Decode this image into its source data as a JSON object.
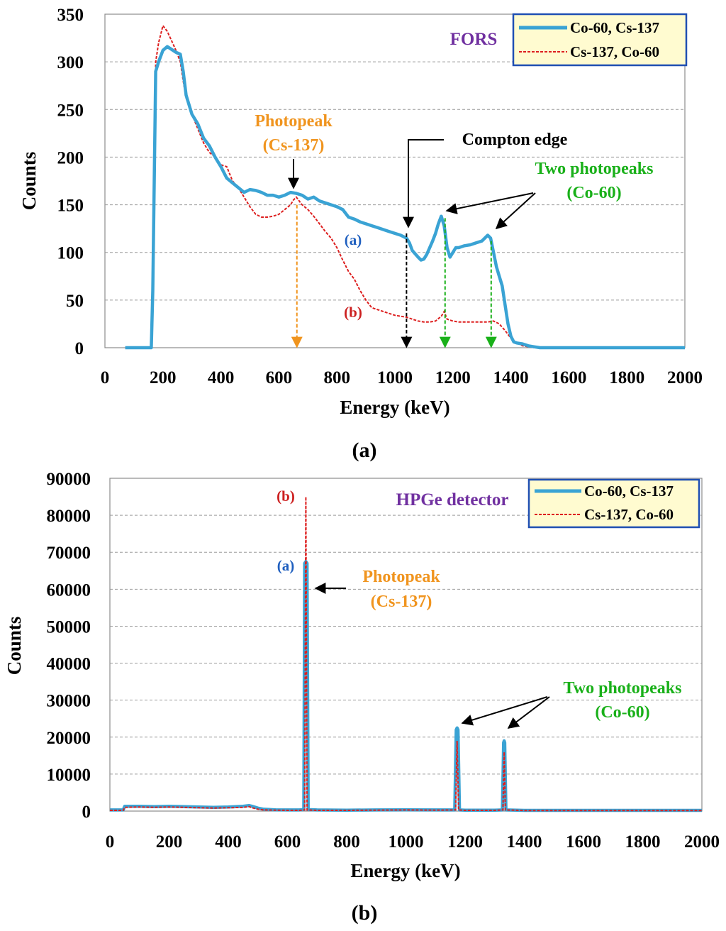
{
  "chart_data": [
    {
      "type": "line",
      "id": "fors",
      "caption": "(a)",
      "xlabel": "Energy (keV)",
      "ylabel": "Counts",
      "xlim": [
        0,
        2000
      ],
      "ylim": [
        0,
        350
      ],
      "xticks": [
        0,
        200,
        400,
        600,
        800,
        1000,
        1200,
        1400,
        1600,
        1800,
        2000
      ],
      "yticks": [
        0,
        50,
        100,
        150,
        200,
        250,
        300,
        350
      ],
      "grid": "horizontal dashed",
      "legend_position": "top-right",
      "title_label": "FORS",
      "colors": {
        "series_a": "#3aa3d4",
        "series_b": "#dd1f1f"
      },
      "series": [
        {
          "name": "Co-60, Cs-137",
          "marker": "(a)",
          "x": [
            70,
            150,
            160,
            165,
            175,
            185,
            200,
            215,
            230,
            245,
            260,
            270,
            280,
            300,
            320,
            340,
            360,
            380,
            400,
            420,
            440,
            460,
            480,
            500,
            520,
            540,
            560,
            580,
            600,
            620,
            640,
            660,
            680,
            700,
            720,
            740,
            760,
            780,
            800,
            820,
            840,
            860,
            880,
            900,
            920,
            940,
            960,
            980,
            1000,
            1020,
            1040,
            1050,
            1060,
            1080,
            1090,
            1100,
            1110,
            1120,
            1130,
            1140,
            1150,
            1160,
            1170,
            1180,
            1190,
            1200,
            1210,
            1220,
            1240,
            1260,
            1280,
            1300,
            1320,
            1330,
            1340,
            1350,
            1360,
            1370,
            1380,
            1390,
            1400,
            1410,
            1420,
            1440,
            1460,
            1480,
            1500,
            1550,
            1600,
            1700,
            1800,
            1900,
            2000
          ],
          "values": [
            0,
            0,
            0,
            60,
            290,
            300,
            312,
            316,
            313,
            310,
            308,
            290,
            265,
            245,
            235,
            220,
            212,
            200,
            190,
            178,
            173,
            168,
            163,
            166,
            165,
            163,
            160,
            160,
            158,
            160,
            163,
            162,
            160,
            156,
            158,
            154,
            152,
            150,
            148,
            145,
            137,
            135,
            132,
            130,
            128,
            126,
            124,
            122,
            120,
            118,
            115,
            110,
            102,
            95,
            92,
            93,
            98,
            105,
            112,
            120,
            130,
            138,
            128,
            105,
            95,
            100,
            105,
            105,
            107,
            108,
            110,
            112,
            118,
            115,
            100,
            85,
            75,
            65,
            45,
            25,
            12,
            6,
            5,
            4,
            2,
            1,
            0,
            0,
            0,
            0,
            0,
            0,
            0
          ]
        },
        {
          "name": "Cs-137, Co-60",
          "marker": "(b)",
          "x": [
            70,
            150,
            160,
            165,
            175,
            185,
            200,
            215,
            230,
            245,
            260,
            270,
            280,
            300,
            320,
            340,
            360,
            380,
            400,
            420,
            440,
            460,
            480,
            500,
            520,
            540,
            560,
            580,
            600,
            620,
            640,
            650,
            660,
            680,
            700,
            720,
            740,
            760,
            780,
            800,
            820,
            840,
            860,
            880,
            900,
            920,
            940,
            960,
            980,
            1000,
            1020,
            1040,
            1060,
            1080,
            1100,
            1120,
            1140,
            1160,
            1170,
            1180,
            1200,
            1220,
            1260,
            1300,
            1320,
            1340,
            1360,
            1380,
            1400,
            1420,
            1440,
            1460,
            1480,
            1500,
            1600,
            1700,
            1800,
            2000
          ],
          "values": [
            0,
            0,
            0,
            60,
            300,
            320,
            338,
            332,
            322,
            312,
            300,
            280,
            262,
            245,
            230,
            215,
            205,
            200,
            192,
            190,
            175,
            168,
            158,
            148,
            140,
            137,
            137,
            138,
            140,
            145,
            150,
            155,
            158,
            150,
            145,
            138,
            130,
            122,
            115,
            105,
            92,
            80,
            72,
            60,
            50,
            42,
            40,
            38,
            36,
            34,
            33,
            32,
            30,
            28,
            27,
            27,
            28,
            33,
            38,
            30,
            28,
            27,
            27,
            27,
            27,
            28,
            25,
            18,
            10,
            5,
            2,
            1,
            0,
            0,
            0,
            0,
            0,
            0
          ]
        }
      ],
      "annotations": {
        "photopeak_title": "Photopeak",
        "photopeak_source": "(Cs-137)",
        "compton": "Compton edge",
        "two_peaks_title": "Two photopeaks",
        "two_peaks_source": "(Co-60)",
        "marker_positions_keV": [
          662,
          1040,
          1173,
          1332
        ]
      }
    },
    {
      "type": "line",
      "id": "hpge",
      "caption": "(b)",
      "xlabel": "Energy (keV)",
      "ylabel": "Counts",
      "xlim": [
        0,
        2000
      ],
      "ylim": [
        0,
        90000
      ],
      "xticks": [
        0,
        200,
        400,
        600,
        800,
        1000,
        1200,
        1400,
        1600,
        1800,
        2000
      ],
      "yticks": [
        0,
        10000,
        20000,
        30000,
        40000,
        50000,
        60000,
        70000,
        80000,
        90000
      ],
      "grid": "horizontal dashed",
      "legend_position": "top-right",
      "title_label": "HPGe detector",
      "colors": {
        "series_a": "#3aa3d4",
        "series_b": "#dd1f1f"
      },
      "series": [
        {
          "name": "Co-60, Cs-137",
          "marker": "(a)",
          "x": [
            0,
            45,
            50,
            100,
            150,
            200,
            250,
            300,
            350,
            400,
            450,
            470,
            480,
            500,
            520,
            560,
            600,
            640,
            655,
            658,
            662,
            666,
            670,
            700,
            800,
            900,
            1000,
            1100,
            1165,
            1170,
            1173,
            1176,
            1181,
            1200,
            1300,
            1326,
            1330,
            1332,
            1334,
            1338,
            1400,
            1600,
            1800,
            2000
          ],
          "values": [
            300,
            300,
            1300,
            1300,
            1200,
            1300,
            1200,
            1100,
            1000,
            1100,
            1300,
            1500,
            1300,
            800,
            500,
            350,
            300,
            300,
            400,
            67000,
            67500,
            67000,
            400,
            300,
            250,
            300,
            350,
            300,
            300,
            22000,
            22500,
            22000,
            300,
            250,
            250,
            300,
            18500,
            19000,
            18500,
            300,
            200,
            200,
            200,
            200
          ]
        },
        {
          "name": "Cs-137, Co-60",
          "marker": "(b)",
          "x": [
            0,
            45,
            50,
            100,
            150,
            200,
            250,
            300,
            350,
            400,
            450,
            470,
            480,
            500,
            520,
            560,
            600,
            640,
            658,
            662,
            666,
            700,
            800,
            900,
            1000,
            1100,
            1168,
            1173,
            1178,
            1200,
            1300,
            1328,
            1332,
            1336,
            1400,
            1600,
            1800,
            2000
          ],
          "values": [
            200,
            200,
            1000,
            1100,
            1000,
            1100,
            1000,
            900,
            800,
            900,
            1000,
            1200,
            900,
            500,
            300,
            250,
            200,
            200,
            300,
            85000,
            300,
            200,
            200,
            250,
            300,
            250,
            300,
            19000,
            300,
            200,
            200,
            300,
            16000,
            300,
            150,
            150,
            150,
            150
          ]
        }
      ],
      "annotations": {
        "photopeak_title": "Photopeak",
        "photopeak_source": "(Cs-137)",
        "two_peaks_title": "Two photopeaks",
        "two_peaks_source": "(Co-60)"
      }
    }
  ]
}
